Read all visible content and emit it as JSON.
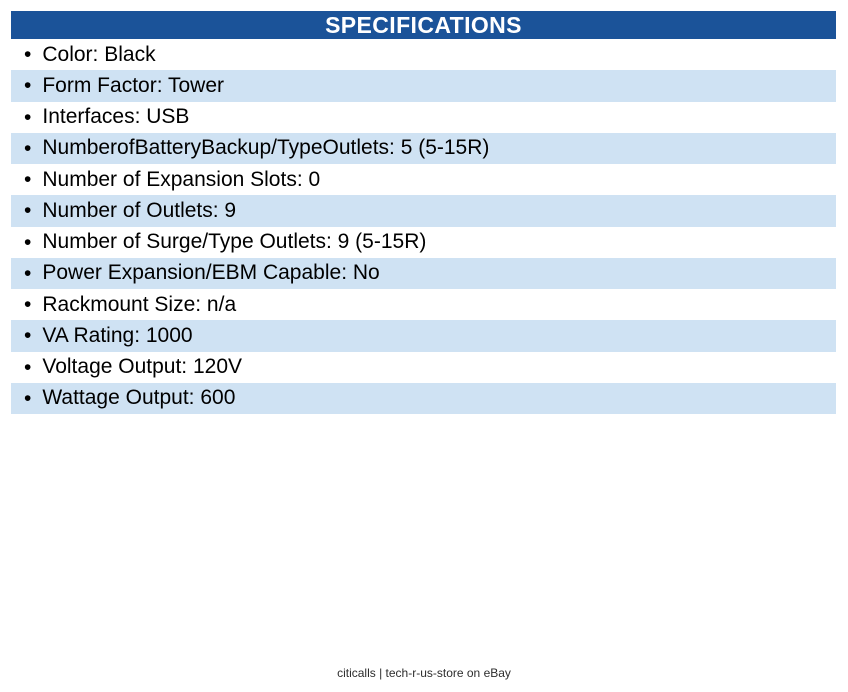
{
  "spec_table": {
    "title": "SPECIFICATIONS",
    "colors": {
      "header_bg": "#1b5399",
      "header_text": "#ffffff",
      "row_bg": "#ffffff",
      "row_alt_bg": "#cfe2f3",
      "row_text": "#000000"
    },
    "separator": ": ",
    "rows": [
      {
        "label": "Color",
        "value": "Black"
      },
      {
        "label": "Form Factor",
        "value": "Tower"
      },
      {
        "label": "Interfaces",
        "value": "USB"
      },
      {
        "label": "NumberofBatteryBackup/TypeOutlets",
        "value": "5 (5-15R)"
      },
      {
        "label": "Number of Expansion Slots",
        "value": "0"
      },
      {
        "label": "Number of Outlets",
        "value": "9"
      },
      {
        "label": "Number of Surge/Type Outlets",
        "value": "9 (5-15R)"
      },
      {
        "label": "Power Expansion/EBM Capable",
        "value": "No"
      },
      {
        "label": "Rackmount Size",
        "value": "n/a"
      },
      {
        "label": "VA Rating",
        "value": "1000"
      },
      {
        "label": "Voltage Output",
        "value": "120V"
      },
      {
        "label": "Wattage Output",
        "value": "600"
      }
    ]
  },
  "footer": {
    "text": "citicalls | tech-r-us-store on eBay"
  }
}
